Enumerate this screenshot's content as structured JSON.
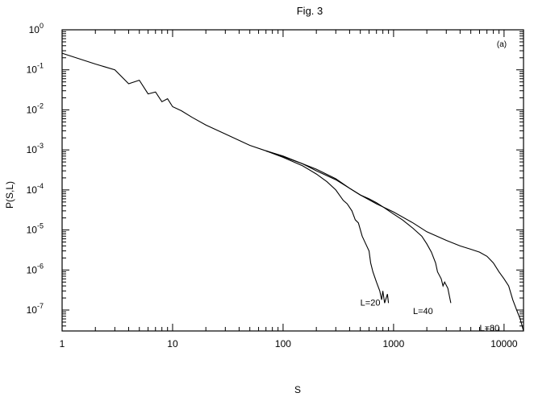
{
  "chart_data": {
    "type": "line",
    "title": "Fig. 3",
    "panel_label": "(a)",
    "xlabel": "S",
    "ylabel": "P(S,L)",
    "x_scale": "log",
    "y_scale": "log",
    "xlim": [
      1,
      15000
    ],
    "ylim": [
      3e-08,
      1
    ],
    "grid": false,
    "x_ticks": [
      {
        "value": 1,
        "label": "1"
      },
      {
        "value": 10,
        "label": "10"
      },
      {
        "value": 100,
        "label": "100"
      },
      {
        "value": 1000,
        "label": "1000"
      },
      {
        "value": 10000,
        "label": "10000"
      }
    ],
    "y_ticks": [
      {
        "value": 1,
        "mant": "10",
        "exp": "0"
      },
      {
        "value": 0.1,
        "mant": "10",
        "exp": "-1"
      },
      {
        "value": 0.01,
        "mant": "10",
        "exp": "-2"
      },
      {
        "value": 0.001,
        "mant": "10",
        "exp": "-3"
      },
      {
        "value": 0.0001,
        "mant": "10",
        "exp": "-4"
      },
      {
        "value": 1e-05,
        "mant": "10",
        "exp": "-5"
      },
      {
        "value": 1e-06,
        "mant": "10",
        "exp": "-6"
      },
      {
        "value": 1e-07,
        "mant": "10",
        "exp": "-7"
      }
    ],
    "series": [
      {
        "name": "L=20",
        "label_at": [
          500,
          1.3e-07
        ],
        "points": [
          [
            1,
            0.26
          ],
          [
            2,
            0.14
          ],
          [
            3,
            0.1
          ],
          [
            4,
            0.045
          ],
          [
            5,
            0.055
          ],
          [
            6,
            0.025
          ],
          [
            7,
            0.028
          ],
          [
            8,
            0.016
          ],
          [
            9,
            0.019
          ],
          [
            10,
            0.012
          ],
          [
            12,
            0.0095
          ],
          [
            15,
            0.0065
          ],
          [
            20,
            0.0042
          ],
          [
            30,
            0.0025
          ],
          [
            50,
            0.0013
          ],
          [
            70,
            0.00095
          ],
          [
            100,
            0.00065
          ],
          [
            150,
            0.0004
          ],
          [
            200,
            0.00025
          ],
          [
            250,
            0.00016
          ],
          [
            300,
            0.0001
          ],
          [
            350,
            5.5e-05
          ],
          [
            380,
            4.5e-05
          ],
          [
            420,
            3e-05
          ],
          [
            450,
            1.8e-05
          ],
          [
            480,
            1.5e-05
          ],
          [
            520,
            7e-06
          ],
          [
            560,
            4.5e-06
          ],
          [
            600,
            3e-06
          ],
          [
            620,
            1.5e-06
          ],
          [
            650,
            9e-07
          ],
          [
            700,
            5e-07
          ],
          [
            750,
            3e-07
          ],
          [
            780,
            1.8e-07
          ],
          [
            800,
            3e-07
          ],
          [
            830,
            1.5e-07
          ],
          [
            880,
            2.5e-07
          ],
          [
            900,
            1.5e-07
          ]
        ]
      },
      {
        "name": "L=40",
        "label_at": [
          1500,
          8e-08
        ],
        "points": [
          [
            70,
            0.00095
          ],
          [
            100,
            0.00068
          ],
          [
            150,
            0.00045
          ],
          [
            200,
            0.00033
          ],
          [
            300,
            0.00019
          ],
          [
            400,
            0.00011
          ],
          [
            500,
            7.5e-05
          ],
          [
            600,
            6e-05
          ],
          [
            700,
            4.8e-05
          ],
          [
            800,
            3.8e-05
          ],
          [
            1000,
            2.5e-05
          ],
          [
            1200,
            1.8e-05
          ],
          [
            1500,
            1.1e-05
          ],
          [
            1800,
            7e-06
          ],
          [
            2000,
            4.5e-06
          ],
          [
            2200,
            2.8e-06
          ],
          [
            2400,
            1.5e-06
          ],
          [
            2500,
            9e-07
          ],
          [
            2700,
            6e-07
          ],
          [
            2800,
            4e-07
          ],
          [
            2900,
            5e-07
          ],
          [
            3100,
            3.5e-07
          ],
          [
            3300,
            1.5e-07
          ]
        ]
      },
      {
        "name": "L=80",
        "label_at": [
          6000,
          3e-08
        ],
        "points": [
          [
            70,
            0.00095
          ],
          [
            100,
            0.0007
          ],
          [
            150,
            0.00045
          ],
          [
            200,
            0.0003
          ],
          [
            300,
            0.00018
          ],
          [
            400,
            0.00011
          ],
          [
            500,
            7.5e-05
          ],
          [
            700,
            4.5e-05
          ],
          [
            1000,
            2.8e-05
          ],
          [
            1500,
            1.5e-05
          ],
          [
            2000,
            9e-06
          ],
          [
            3000,
            5.5e-06
          ],
          [
            4000,
            4e-06
          ],
          [
            5000,
            3.3e-06
          ],
          [
            6000,
            2.8e-06
          ],
          [
            7000,
            2.2e-06
          ],
          [
            8000,
            1.5e-06
          ],
          [
            9000,
            9e-07
          ],
          [
            10000,
            6e-07
          ],
          [
            11000,
            4e-07
          ],
          [
            12000,
            1.8e-07
          ],
          [
            13000,
            1e-07
          ],
          [
            14000,
            6e-08
          ],
          [
            15000,
            3e-08
          ]
        ]
      }
    ]
  }
}
